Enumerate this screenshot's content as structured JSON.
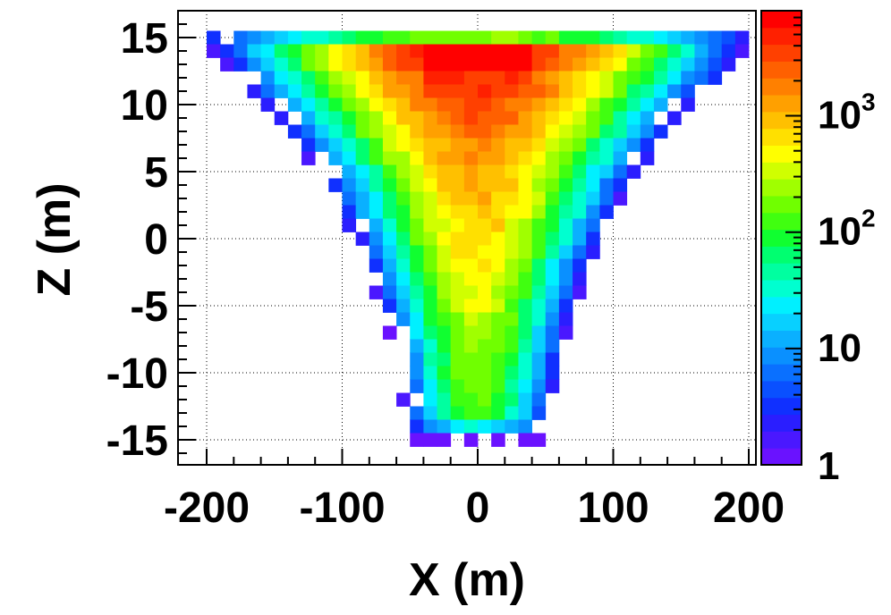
{
  "chart_data": {
    "type": "heatmap",
    "title": "",
    "xlabel": "X (m)",
    "ylabel": "Z (m)",
    "xlim": [
      -200,
      200
    ],
    "ylim": [
      -16.5,
      16.5
    ],
    "x_ticks": [
      -200,
      -100,
      0,
      100,
      200
    ],
    "x_tick_labels": [
      "-200",
      "-100",
      "0",
      "100",
      "200"
    ],
    "y_ticks": [
      -15,
      -10,
      -5,
      0,
      5,
      10,
      15
    ],
    "y_tick_labels": [
      "-15",
      "-10",
      "-5",
      "0",
      "5",
      "10",
      "15"
    ],
    "grid": true,
    "grid_style": "dotted",
    "color_scale": {
      "type": "log",
      "min": 1,
      "max": 8000,
      "tick_values": [
        1,
        10,
        100,
        1000
      ],
      "tick_labels": [
        {
          "base": "1",
          "exp": ""
        },
        {
          "base": "10",
          "exp": ""
        },
        {
          "base": "10",
          "exp": "2"
        },
        {
          "base": "10",
          "exp": "3"
        }
      ],
      "palette": [
        "#6a12ff",
        "#4a18ff",
        "#2a1eff",
        "#1030ff",
        "#0a50ff",
        "#0a70ff",
        "#0a90ff",
        "#0ab0ff",
        "#08d0ff",
        "#00f0ff",
        "#00ffd0",
        "#00ffa0",
        "#00ff70",
        "#10ff30",
        "#40ff10",
        "#70ff00",
        "#a0ff00",
        "#d0ff00",
        "#ffff00",
        "#ffe000",
        "#ffc000",
        "#ffa000",
        "#ff8000",
        "#ff6000",
        "#ff4000",
        "#ff2000",
        "#ff0000"
      ]
    },
    "bin_width_x": 10,
    "bin_height_z": 1,
    "bins_description": "counts per 10 m x 1 m bin, approximated from the image",
    "rows_z": [
      15,
      14,
      13,
      12,
      11,
      10,
      9,
      8,
      7,
      6,
      5,
      4,
      3,
      2,
      1,
      0,
      -1,
      -2,
      -3,
      -4,
      -5,
      -6,
      -7,
      -8,
      -9,
      -10,
      -11,
      -12,
      -13,
      -14,
      -15
    ],
    "half_width_m": [
      195,
      195,
      185,
      175,
      165,
      155,
      145,
      140,
      130,
      125,
      115,
      110,
      105,
      100,
      95,
      90,
      85,
      80,
      80,
      75,
      70,
      68,
      65,
      63,
      60,
      58,
      57,
      55,
      53,
      50,
      48
    ],
    "center_log10_counts": [
      2.3,
      3.9,
      3.9,
      3.6,
      3.6,
      3.5,
      3.4,
      3.3,
      3.2,
      3.15,
      3.1,
      3.05,
      3.0,
      2.95,
      2.9,
      2.85,
      2.8,
      2.75,
      2.7,
      2.65,
      2.6,
      2.5,
      2.45,
      2.4,
      2.35,
      2.3,
      2.25,
      2.2,
      2.1,
      1.5,
      0.1
    ],
    "edge_log10_counts": [
      0.5,
      0.2,
      0.3,
      0.4,
      0.4,
      0.4,
      0.4,
      0.35,
      0.35,
      0.3,
      0.3,
      0.3,
      0.3,
      0.3,
      0.25,
      0.25,
      0.25,
      0.2,
      0.2,
      0.2,
      0.2,
      0.2,
      0.2,
      0.2,
      0.2,
      0.2,
      0.2,
      0.2,
      0.2,
      0.2,
      0.0
    ]
  }
}
